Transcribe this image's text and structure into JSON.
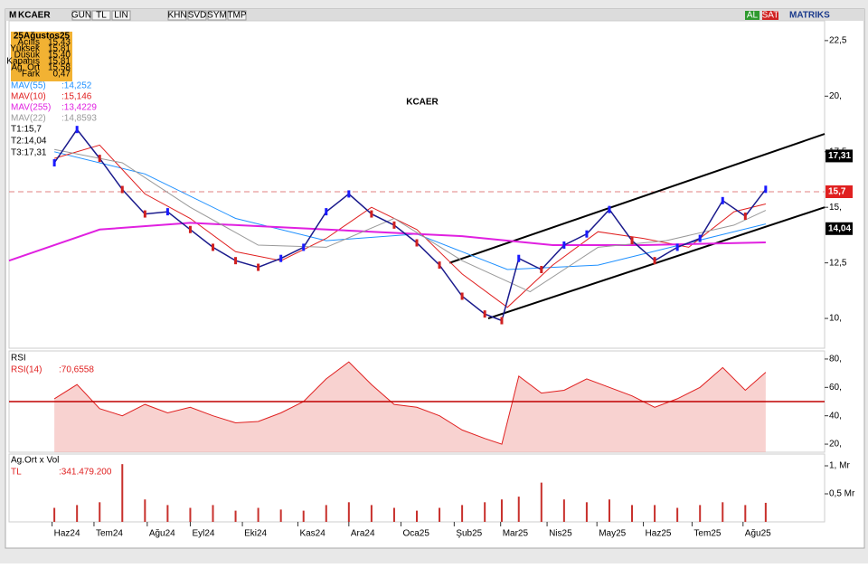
{
  "toolbar": {
    "logo": "M",
    "symbol": "KCAER",
    "buttons": [
      "GUN",
      "TL",
      "LIN",
      "KHN",
      "SVD",
      "SYM",
      "TMP"
    ],
    "buy": "AL",
    "sell": "SAT",
    "brand": "MATRIKS"
  },
  "info_box": {
    "date": "25Ağustos25",
    "rows": [
      [
        "Açılış",
        "15,43"
      ],
      [
        "Yüksek",
        "15,81"
      ],
      [
        "Düşük",
        "15,40"
      ],
      [
        "Kapanış",
        "15,81"
      ],
      [
        "Ağ. Ort",
        "15,58"
      ],
      [
        "Fark",
        "0,47"
      ]
    ]
  },
  "chart_data": [
    {
      "type": "line",
      "title": "KCAER",
      "x": [
        4,
        6,
        8,
        10,
        12,
        14,
        16,
        18,
        20,
        22,
        24,
        26,
        28,
        30,
        32,
        34,
        36,
        38,
        40,
        42,
        43.5,
        45,
        47,
        49,
        51,
        53,
        55,
        57,
        59,
        61,
        63,
        65,
        66.8
      ],
      "values": [
        17.0,
        18.5,
        17.2,
        15.8,
        14.7,
        14.8,
        14.0,
        13.2,
        12.6,
        12.3,
        12.7,
        13.2,
        14.8,
        15.6,
        14.7,
        14.2,
        13.4,
        12.4,
        11.0,
        10.2,
        9.9,
        12.7,
        12.2,
        13.3,
        13.8,
        14.9,
        13.5,
        12.6,
        13.2,
        13.6,
        15.3,
        14.6,
        15.81
      ],
      "color": "#1a1a8c",
      "series": [
        {
          "name": "MAV(55)",
          "label": ":14,252",
          "color": "#1e90ff",
          "x": [
            4,
            12,
            20,
            28,
            36,
            44,
            52,
            60,
            66.8
          ],
          "values": [
            17.5,
            16.5,
            14.5,
            13.5,
            13.8,
            12.2,
            12.4,
            13.4,
            14.25
          ]
        },
        {
          "name": "MAV(10)",
          "label": ":15,146",
          "color": "#e02020",
          "x": [
            4,
            8,
            12,
            16,
            20,
            24,
            28,
            32,
            36,
            40,
            44,
            48,
            52,
            56,
            60,
            64,
            66.8
          ],
          "values": [
            17.2,
            17.8,
            15.6,
            14.5,
            13.0,
            12.6,
            13.6,
            15.0,
            14.0,
            12.0,
            10.5,
            12.4,
            13.9,
            13.6,
            13.2,
            14.8,
            15.15
          ]
        },
        {
          "name": "MAV(255)",
          "label": ":13,4229",
          "color": "#e020e0",
          "x": [
            0,
            8,
            16,
            24,
            32,
            40,
            48,
            56,
            66.8
          ],
          "values": [
            12.6,
            14.0,
            14.3,
            14.1,
            13.9,
            13.7,
            13.3,
            13.3,
            13.42
          ]
        },
        {
          "name": "MAV(22)",
          "label": ":14,8593",
          "color": "#999999",
          "x": [
            4,
            10,
            16,
            22,
            28,
            34,
            40,
            46,
            52,
            58,
            64,
            66.8
          ],
          "values": [
            17.6,
            17.0,
            15.0,
            13.3,
            13.2,
            14.5,
            12.6,
            11.2,
            13.2,
            13.5,
            14.2,
            14.86
          ]
        }
      ],
      "targets": [
        "T1:15,7",
        "T2:14,04",
        "T3:17,31"
      ],
      "price_markers": [
        {
          "value": 17.31,
          "label": "17,31",
          "color": "#000000"
        },
        {
          "value": 15.7,
          "label": "15,7",
          "color": "#e02020"
        },
        {
          "value": 14.04,
          "label": "14,04",
          "color": "#000000"
        }
      ],
      "reference_line": 15.7,
      "trendlines": [
        {
          "x": [
            38.9,
            72
          ],
          "y": [
            12.5,
            18.3
          ]
        },
        {
          "x": [
            42.3,
            72
          ],
          "y": [
            10.0,
            15.0
          ]
        }
      ],
      "xlim": [
        0,
        72
      ],
      "ylim": [
        8.66,
        23.39
      ],
      "yticks": [
        {
          "value": 22.5,
          "label": "22,5"
        },
        {
          "value": 20,
          "label": "20,"
        },
        {
          "value": 17.5,
          "label": "17,5"
        },
        {
          "value": 15,
          "label": "15,"
        },
        {
          "value": 12.5,
          "label": "12,5"
        },
        {
          "value": 10,
          "label": "10,"
        }
      ]
    },
    {
      "type": "area",
      "title": "RSI",
      "series_name": "RSI(14)",
      "last_label": ":70,6558",
      "color": "#e02020",
      "x": [
        4,
        6,
        8,
        10,
        12,
        14,
        16,
        18,
        20,
        22,
        24,
        26,
        28,
        30,
        32,
        34,
        36,
        38,
        40,
        42,
        43.5,
        45,
        47,
        49,
        51,
        53,
        55,
        57,
        59,
        61,
        63,
        65,
        66.8
      ],
      "values": [
        52,
        62,
        45,
        40,
        48,
        42,
        46,
        40,
        35,
        36,
        42,
        50,
        66,
        78,
        62,
        48,
        46,
        40,
        30,
        24,
        20,
        68,
        56,
        58,
        66,
        60,
        54,
        46,
        52,
        60,
        74,
        58,
        70.6558
      ],
      "level": 50,
      "xlim": [
        0,
        72
      ],
      "ylim": [
        14.3,
        85.7
      ],
      "yticks": [
        {
          "value": 80,
          "label": "80,"
        },
        {
          "value": 60,
          "label": "60,"
        },
        {
          "value": 40,
          "label": "40,"
        },
        {
          "value": 20,
          "label": "20,"
        }
      ]
    },
    {
      "type": "bar",
      "title": "Ag.Ort x Vol",
      "unit": "TL",
      "last_label": ":341.479.200",
      "color": "#c8302c",
      "x": [
        4,
        6,
        8,
        10,
        12,
        14,
        16,
        18,
        20,
        22,
        24,
        26,
        28,
        30,
        32,
        34,
        36,
        38,
        40,
        42,
        43.5,
        45,
        47,
        49,
        51,
        53,
        55,
        57,
        59,
        61,
        63,
        65,
        66.8
      ],
      "values": [
        0.25,
        0.3,
        0.35,
        1.03,
        0.4,
        0.3,
        0.25,
        0.3,
        0.2,
        0.25,
        0.22,
        0.2,
        0.3,
        0.35,
        0.3,
        0.25,
        0.2,
        0.25,
        0.3,
        0.35,
        0.4,
        0.45,
        0.7,
        0.4,
        0.35,
        0.4,
        0.3,
        0.3,
        0.25,
        0.3,
        0.35,
        0.3,
        0.34
      ],
      "xlim": [
        0,
        72
      ],
      "ylim": [
        0,
        1.21
      ],
      "yticks": [
        {
          "value": 1,
          "label": "1, Mr"
        },
        {
          "value": 0.5,
          "label": "0,5 Mr"
        }
      ],
      "xticks": [
        {
          "value": 3.8,
          "label": "Haz24"
        },
        {
          "value": 7.5,
          "label": "Tem24"
        },
        {
          "value": 12.2,
          "label": "Ağu24"
        },
        {
          "value": 16,
          "label": "Eyl24"
        },
        {
          "value": 20.6,
          "label": "Eki24"
        },
        {
          "value": 25.5,
          "label": "Kas24"
        },
        {
          "value": 30,
          "label": "Ara24"
        },
        {
          "value": 34.6,
          "label": "Oca25"
        },
        {
          "value": 39.3,
          "label": "Şub25"
        },
        {
          "value": 43.4,
          "label": "Mar25"
        },
        {
          "value": 47.5,
          "label": "Nis25"
        },
        {
          "value": 51.9,
          "label": "May25"
        },
        {
          "value": 56,
          "label": "Haz25"
        },
        {
          "value": 60.3,
          "label": "Tem25"
        },
        {
          "value": 64.8,
          "label": "Ağu25"
        }
      ]
    }
  ]
}
